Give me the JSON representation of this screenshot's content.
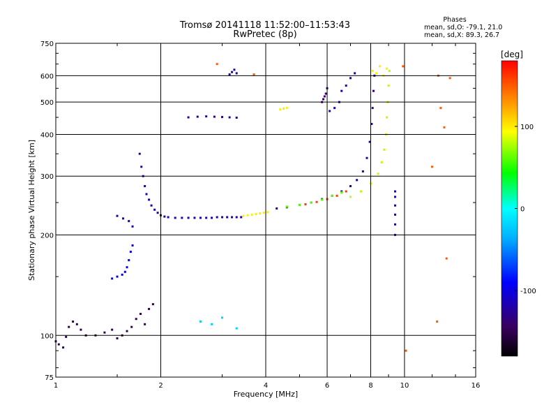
{
  "header": {
    "title_line1": "Tromsø 20141118 11:52:00–11:53:43",
    "title_line2": "RwPretec (8p)",
    "phases_title": "Phases",
    "phases_o": "mean, sd,O: -79.1, 21.0",
    "phases_x": "mean, sd,X:  89.3, 26.7"
  },
  "colorbar": {
    "label": "[deg]",
    "range": [
      -180,
      180
    ],
    "ticks": [
      {
        "value": 100,
        "label": "100"
      },
      {
        "value": 0,
        "label": "0"
      },
      {
        "value": -100,
        "label": "-100"
      }
    ]
  },
  "chart_data": {
    "type": "scatter",
    "title": "Tromsø 20141118 11:52:00–11:53:43",
    "subtitle": "RwPretec (8p)",
    "xlabel": "Frequency [MHz]",
    "ylabel": "Stationary phase Virtual Height [km]",
    "xscale": "log",
    "yscale": "log",
    "xlim": [
      1,
      16
    ],
    "ylim": [
      75,
      750
    ],
    "grid": true,
    "x_ticks": [
      1,
      2,
      4,
      6,
      8,
      10,
      16
    ],
    "x_tick_labels": [
      "1",
      "2",
      "4",
      "6",
      "8",
      "10",
      "16"
    ],
    "y_ticks": [
      75,
      100,
      200,
      300,
      400,
      500,
      600,
      750
    ],
    "y_tick_labels": [
      "75",
      "100",
      "200",
      "300",
      "400",
      "500",
      "600",
      "750"
    ],
    "color_by": "phase_deg",
    "series": [
      {
        "x": [
          1.0,
          1.02,
          1.05,
          1.07,
          1.09,
          1.12,
          1.15,
          1.18,
          1.22,
          1.3,
          1.38,
          1.45,
          1.5,
          1.55,
          1.6,
          1.65,
          1.7,
          1.75,
          1.8,
          1.85,
          1.9
        ],
        "y": [
          96,
          94,
          92,
          99,
          106,
          110,
          108,
          104,
          100,
          100,
          102,
          104,
          98,
          100,
          103,
          106,
          112,
          116,
          108,
          120,
          124
        ],
        "phase": -150
      },
      {
        "x": [
          1.45,
          1.5,
          1.55,
          1.58,
          1.6,
          1.62,
          1.64,
          1.66
        ],
        "y": [
          148,
          150,
          152,
          155,
          160,
          168,
          178,
          186
        ],
        "phase": -95
      },
      {
        "x": [
          1.5,
          1.56,
          1.62,
          1.66
        ],
        "y": [
          228,
          224,
          220,
          212
        ],
        "phase": -120
      },
      {
        "x": [
          1.74,
          1.76,
          1.78,
          1.8,
          1.82,
          1.85,
          1.88,
          1.92,
          1.96,
          2.0,
          2.05,
          2.1,
          2.2,
          2.3,
          2.4,
          2.5,
          2.6,
          2.7,
          2.8,
          2.9,
          3.0,
          3.1,
          3.2,
          3.3,
          3.4
        ],
        "y": [
          350,
          320,
          300,
          280,
          265,
          255,
          245,
          238,
          233,
          229,
          227,
          226,
          225,
          225,
          225,
          225,
          225,
          225,
          225,
          226,
          226,
          226,
          226,
          226,
          226
        ],
        "phase": -120
      },
      {
        "x": [
          3.45,
          3.55,
          3.65,
          3.75,
          3.85,
          3.95,
          4.05
        ],
        "y": [
          228,
          229,
          230,
          231,
          232,
          233,
          234
        ],
        "phase": 100
      },
      {
        "x": [
          2.4,
          2.55,
          2.7,
          2.85,
          3.0,
          3.15,
          3.3
        ],
        "y": [
          450,
          452,
          453,
          452,
          451,
          450,
          449
        ],
        "phase": -130
      },
      {
        "x": [
          3.15,
          3.2,
          3.25,
          3.3
        ],
        "y": [
          605,
          615,
          625,
          610
        ],
        "phase": -125
      },
      {
        "x": [
          4.3,
          4.6,
          5.0,
          5.4,
          5.8,
          6.2,
          6.6,
          7.0,
          7.3,
          7.6,
          7.8,
          7.95,
          8.05,
          8.1,
          8.15,
          8.2
        ],
        "y": [
          240,
          242,
          246,
          250,
          256,
          262,
          270,
          280,
          292,
          310,
          340,
          380,
          430,
          480,
          540,
          600
        ],
        "phase": -130
      },
      {
        "x": [
          4.6,
          5.0,
          5.4,
          5.8,
          6.2,
          6.6
        ],
        "y": [
          243,
          246,
          250,
          255,
          262,
          268
        ],
        "phase": 60
      },
      {
        "x": [
          5.2,
          5.6,
          6.0,
          6.4,
          6.8
        ],
        "y": [
          247,
          251,
          256,
          262,
          270
        ],
        "phase": 160
      },
      {
        "x": [
          7.0,
          7.5,
          8.0,
          8.4,
          8.6,
          8.75,
          8.85,
          8.9,
          8.95,
          9.0,
          9.05
        ],
        "y": [
          260,
          270,
          285,
          305,
          330,
          360,
          400,
          450,
          500,
          560,
          620
        ],
        "phase": 80
      },
      {
        "x": [
          8.1,
          8.3,
          8.5,
          8.7,
          8.9
        ],
        "y": [
          620,
          610,
          640,
          600,
          630
        ],
        "phase": 100
      },
      {
        "x": [
          9.4,
          9.4,
          9.4,
          9.4,
          9.4,
          9.4
        ],
        "y": [
          200,
          215,
          230,
          245,
          260,
          270
        ],
        "phase": -100
      },
      {
        "x": [
          6.1,
          6.3,
          6.5,
          6.6,
          6.8,
          7.0,
          7.2
        ],
        "y": [
          470,
          480,
          500,
          540,
          560,
          590,
          610
        ],
        "phase": -110
      },
      {
        "x": [
          5.8,
          5.85,
          5.9,
          5.95,
          6.0
        ],
        "y": [
          500,
          510,
          520,
          530,
          550
        ],
        "phase": -140
      },
      {
        "x": [
          4.4,
          4.5,
          4.6
        ],
        "y": [
          475,
          478,
          480
        ],
        "phase": 100
      },
      {
        "x": [
          2.9,
          3.7,
          9.9,
          10.1,
          12.5,
          12.7,
          13.0,
          13.5,
          12.0,
          12.4,
          13.2
        ],
        "y": [
          650,
          605,
          640,
          90,
          600,
          480,
          420,
          590,
          320,
          110,
          170
        ],
        "phase": 150
      },
      {
        "x": [
          2.6,
          2.8,
          3.0,
          3.3
        ],
        "y": [
          110,
          108,
          113,
          105
        ],
        "phase": -20
      }
    ]
  }
}
